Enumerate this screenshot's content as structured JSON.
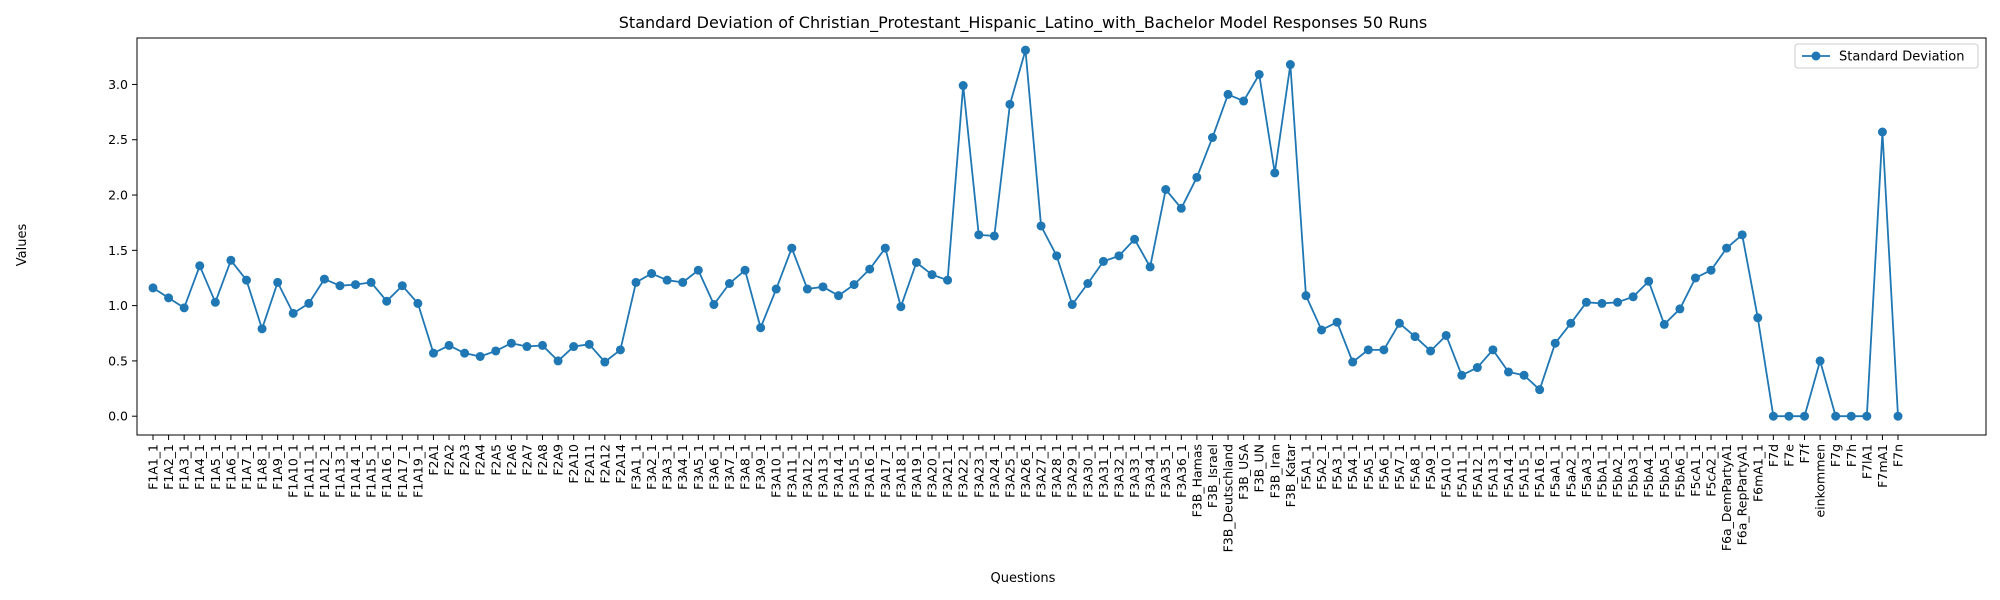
{
  "chart_data": {
    "type": "line",
    "title": "Standard Deviation of Christian_Protestant_Hispanic_Latino_with_Bachelor Model Responses 50 Runs",
    "xlabel": "Questions",
    "ylabel": "Values",
    "ylim": [
      -0.17,
      3.42
    ],
    "yticks": [
      0.0,
      0.5,
      1.0,
      1.5,
      2.0,
      2.5,
      3.0
    ],
    "yticklabels": [
      "0.0",
      "0.5",
      "1.0",
      "1.5",
      "2.0",
      "2.5",
      "3.0"
    ],
    "grid": false,
    "legend": {
      "position": "top-right",
      "entries": [
        "Standard Deviation"
      ]
    },
    "colors": {
      "line": "#1f77b4"
    },
    "categories": [
      "F1A1_1",
      "F1A2_1",
      "F1A3_1",
      "F1A4_1",
      "F1A5_1",
      "F1A6_1",
      "F1A7_1",
      "F1A8_1",
      "F1A9_1",
      "F1A10_1",
      "F1A11_1",
      "F1A12_1",
      "F1A13_1",
      "F1A14_1",
      "F1A15_1",
      "F1A16_1",
      "F1A17_1",
      "F1A19_1",
      "F2A1",
      "F2A2",
      "F2A3",
      "F2A4",
      "F2A5",
      "F2A6",
      "F2A7",
      "F2A8",
      "F2A9",
      "F2A10",
      "F2A11",
      "F2A12",
      "F2A14",
      "F3A1_1",
      "F3A2_1",
      "F3A3_1",
      "F3A4_1",
      "F3A5_1",
      "F3A6_1",
      "F3A7_1",
      "F3A8_1",
      "F3A9_1",
      "F3A10_1",
      "F3A11_1",
      "F3A12_1",
      "F3A13_1",
      "F3A14_1",
      "F3A15_1",
      "F3A16_1",
      "F3A17_1",
      "F3A18_1",
      "F3A19_1",
      "F3A20_1",
      "F3A21_1",
      "F3A22_1",
      "F3A23_1",
      "F3A24_1",
      "F3A25_1",
      "F3A26_1",
      "F3A27_1",
      "F3A28_1",
      "F3A29_1",
      "F3A30_1",
      "F3A31_1",
      "F3A32_1",
      "F3A33_1",
      "F3A34_1",
      "F3A35_1",
      "F3A36_1",
      "F3B_Hamas",
      "F3B_Israel",
      "F3B_Deutschland",
      "F3B_USA",
      "F3B_UN",
      "F3B_Iran",
      "F3B_Katar",
      "F5A1_1",
      "F5A2_1",
      "F5A3_1",
      "F5A4_1",
      "F5A5_1",
      "F5A6_1",
      "F5A7_1",
      "F5A8_1",
      "F5A9_1",
      "F5A10_1",
      "F5A11_1",
      "F5A12_1",
      "F5A13_1",
      "F5A14_1",
      "F5A15_1",
      "F5A16_1",
      "F5aA1_1",
      "F5aA2_1",
      "F5aA3_1",
      "F5bA1_1",
      "F5bA2_1",
      "F5bA3_1",
      "F5bA4_1",
      "F5bA5_1",
      "F5bA6_1",
      "F5cA1_1",
      "F5cA2_1",
      "F6a_DemPartyA1",
      "F6a_RepPartyA1",
      "F6mA1_1",
      "F7d",
      "F7e",
      "F7f",
      "einkommen",
      "F7g",
      "F7h",
      "F7lA1",
      "F7mA1",
      "F7n"
    ],
    "series": [
      {
        "name": "Standard Deviation",
        "values": [
          1.16,
          1.07,
          0.98,
          1.36,
          1.03,
          1.41,
          1.23,
          0.79,
          1.21,
          0.93,
          1.02,
          1.24,
          1.18,
          1.19,
          1.21,
          1.04,
          1.18,
          1.02,
          0.57,
          0.64,
          0.57,
          0.54,
          0.59,
          0.66,
          0.63,
          0.64,
          0.5,
          0.63,
          0.65,
          0.49,
          0.6,
          1.21,
          1.29,
          1.23,
          1.21,
          1.32,
          1.01,
          1.2,
          1.32,
          0.8,
          1.15,
          1.52,
          1.15,
          1.17,
          1.09,
          1.19,
          1.33,
          1.52,
          0.99,
          1.39,
          1.28,
          1.23,
          2.99,
          1.64,
          1.63,
          2.82,
          3.31,
          1.72,
          1.45,
          1.01,
          1.2,
          1.4,
          1.45,
          1.6,
          1.35,
          2.05,
          1.88,
          2.16,
          2.52,
          2.91,
          2.85,
          3.09,
          2.2,
          3.18,
          1.09,
          0.78,
          0.85,
          0.49,
          0.6,
          0.6,
          0.84,
          0.72,
          0.59,
          0.73,
          0.37,
          0.44,
          0.6,
          0.4,
          0.37,
          0.24,
          0.66,
          0.84,
          1.03,
          1.02,
          1.03,
          1.08,
          1.22,
          0.83,
          0.97,
          1.25,
          1.32,
          1.52,
          1.64,
          0.89,
          0.0,
          0.0,
          0.0,
          0.5,
          0.0,
          0.0,
          0.0,
          2.57,
          0.0
        ]
      }
    ]
  }
}
